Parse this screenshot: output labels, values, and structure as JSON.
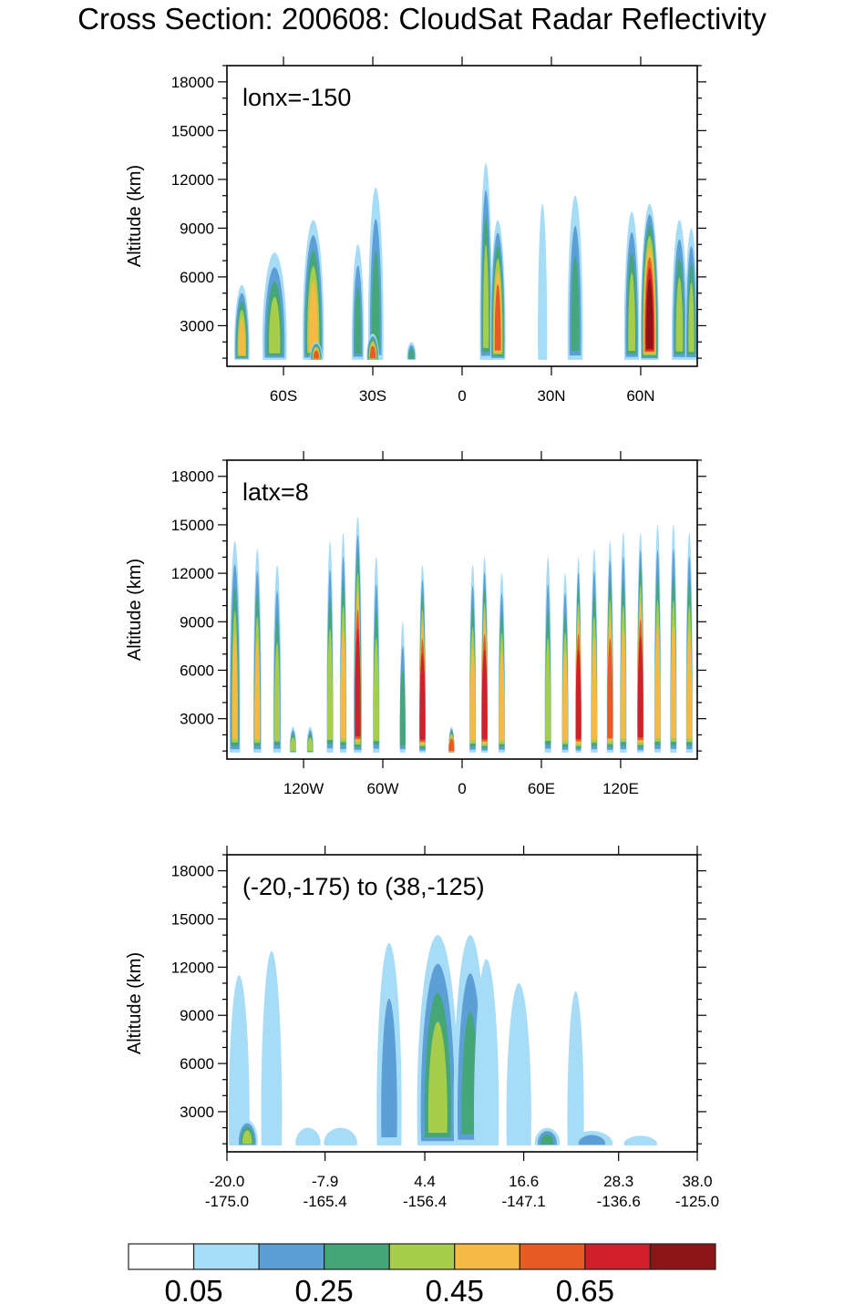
{
  "title": "Cross Section: 200608: CloudSat Radar Reflectivity",
  "colors": {
    "levels": [
      "#ffffff",
      "#a6dcf5",
      "#5b9fd6",
      "#45a677",
      "#a8cd4b",
      "#f6b944",
      "#ea5a26",
      "#d0202a",
      "#8c1416"
    ],
    "axis": "#000000"
  },
  "chart_data": [
    {
      "type": "heatmap",
      "panel_label": "lonx=-150",
      "ylabel": "Altitude (km)",
      "xlabel": "",
      "x_ticks": [
        {
          "value": -60,
          "label": "60S"
        },
        {
          "value": -30,
          "label": "30S"
        },
        {
          "value": 0,
          "label": "0"
        },
        {
          "value": 30,
          "label": "30N"
        },
        {
          "value": 60,
          "label": "60N"
        }
      ],
      "xlim": [
        -79,
        79
      ],
      "y_ticks": [
        3000,
        6000,
        9000,
        12000,
        15000,
        18000
      ],
      "ylim": [
        500,
        19000
      ],
      "grid": false,
      "features": [
        {
          "x": -74,
          "width": 5,
          "top": 5500,
          "peak_level": 5
        },
        {
          "x": -63,
          "width": 8,
          "top": 7500,
          "peak_level": 4
        },
        {
          "x": -50,
          "width": 7,
          "top": 9500,
          "peak_level": 5
        },
        {
          "x": -49,
          "width": 4,
          "top": 2000,
          "peak_level": 6
        },
        {
          "x": -35,
          "width": 4,
          "top": 8000,
          "peak_level": 3
        },
        {
          "x": -29,
          "width": 5,
          "top": 11500,
          "peak_level": 3
        },
        {
          "x": -30,
          "width": 4,
          "top": 2500,
          "peak_level": 6
        },
        {
          "x": -17,
          "width": 3,
          "top": 2000,
          "peak_level": 3
        },
        {
          "x": 8,
          "width": 4,
          "top": 13000,
          "peak_level": 4
        },
        {
          "x": 12,
          "width": 5,
          "top": 9500,
          "peak_level": 6
        },
        {
          "x": 27,
          "width": 3,
          "top": 10500,
          "peak_level": 1
        },
        {
          "x": 38,
          "width": 5,
          "top": 11000,
          "peak_level": 3
        },
        {
          "x": 57,
          "width": 5,
          "top": 10000,
          "peak_level": 4
        },
        {
          "x": 63,
          "width": 6,
          "top": 10500,
          "peak_level": 8
        },
        {
          "x": 73,
          "width": 5,
          "top": 9500,
          "peak_level": 4
        },
        {
          "x": 77,
          "width": 4,
          "top": 9000,
          "peak_level": 4
        }
      ]
    },
    {
      "type": "heatmap",
      "panel_label": "latx=8",
      "ylabel": "Altitude (km)",
      "xlabel": "",
      "x_ticks": [
        {
          "value": -120,
          "label": "120W"
        },
        {
          "value": -60,
          "label": "60W"
        },
        {
          "value": 0,
          "label": "0"
        },
        {
          "value": 60,
          "label": "60E"
        },
        {
          "value": 120,
          "label": "120E"
        }
      ],
      "xlim": [
        -178,
        178
      ],
      "y_ticks": [
        3000,
        6000,
        9000,
        12000,
        15000,
        18000
      ],
      "ylim": [
        500,
        19000
      ],
      "grid": false,
      "features": [
        {
          "x": -172,
          "width": 8,
          "top": 14000,
          "peak_level": 5
        },
        {
          "x": -155,
          "width": 6,
          "top": 13500,
          "peak_level": 5
        },
        {
          "x": -140,
          "width": 6,
          "top": 12500,
          "peak_level": 4
        },
        {
          "x": -128,
          "width": 5,
          "top": 2500,
          "peak_level": 4
        },
        {
          "x": -115,
          "width": 5,
          "top": 2500,
          "peak_level": 4
        },
        {
          "x": -100,
          "width": 5,
          "top": 14000,
          "peak_level": 4
        },
        {
          "x": -90,
          "width": 5,
          "top": 14500,
          "peak_level": 5
        },
        {
          "x": -79,
          "width": 6,
          "top": 15500,
          "peak_level": 7
        },
        {
          "x": -65,
          "width": 5,
          "top": 13000,
          "peak_level": 4
        },
        {
          "x": -45,
          "width": 4,
          "top": 9000,
          "peak_level": 3
        },
        {
          "x": -30,
          "width": 5,
          "top": 12500,
          "peak_level": 7
        },
        {
          "x": -8,
          "width": 4,
          "top": 2500,
          "peak_level": 6
        },
        {
          "x": 8,
          "width": 5,
          "top": 12500,
          "peak_level": 5
        },
        {
          "x": 17,
          "width": 5,
          "top": 13000,
          "peak_level": 7
        },
        {
          "x": 30,
          "width": 5,
          "top": 12000,
          "peak_level": 5
        },
        {
          "x": 65,
          "width": 5,
          "top": 13000,
          "peak_level": 4
        },
        {
          "x": 78,
          "width": 5,
          "top": 12000,
          "peak_level": 5
        },
        {
          "x": 88,
          "width": 4,
          "top": 13000,
          "peak_level": 7
        },
        {
          "x": 100,
          "width": 5,
          "top": 13500,
          "peak_level": 5
        },
        {
          "x": 112,
          "width": 5,
          "top": 14000,
          "peak_level": 6
        },
        {
          "x": 122,
          "width": 5,
          "top": 14500,
          "peak_level": 5
        },
        {
          "x": 135,
          "width": 5,
          "top": 14500,
          "peak_level": 7
        },
        {
          "x": 148,
          "width": 5,
          "top": 15000,
          "peak_level": 5
        },
        {
          "x": 160,
          "width": 5,
          "top": 15000,
          "peak_level": 5
        },
        {
          "x": 172,
          "width": 5,
          "top": 14500,
          "peak_level": 5
        }
      ]
    },
    {
      "type": "heatmap",
      "panel_label": "(-20,-175) to (38,-125)",
      "ylabel": "Altitude (km)",
      "xlabel": "",
      "x_ticks": [
        {
          "value": -20.0,
          "label": "-20.0",
          "label2": "-175.0"
        },
        {
          "value": -7.9,
          "label": "-7.9",
          "label2": "-165.4"
        },
        {
          "value": 4.4,
          "label": "4.4",
          "label2": "-156.4"
        },
        {
          "value": 16.6,
          "label": "16.6",
          "label2": "-147.1"
        },
        {
          "value": 28.3,
          "label": "28.3",
          "label2": "-136.6"
        },
        {
          "value": 38.0,
          "label": "38.0",
          "label2": "-125.0"
        }
      ],
      "xlim": [
        -20.0,
        38.0
      ],
      "y_ticks": [
        3000,
        6000,
        9000,
        12000,
        15000,
        18000
      ],
      "ylim": [
        500,
        19000
      ],
      "grid": false,
      "features": [
        {
          "x": -18.5,
          "width": 2.5,
          "top": 11500,
          "peak_level": 1
        },
        {
          "x": -17.5,
          "width": 2.5,
          "top": 2500,
          "peak_level": 4
        },
        {
          "x": -14.5,
          "width": 2.5,
          "top": 13000,
          "peak_level": 1
        },
        {
          "x": -10,
          "width": 3,
          "top": 2000,
          "peak_level": 1
        },
        {
          "x": -6,
          "width": 4,
          "top": 2000,
          "peak_level": 1
        },
        {
          "x": 0,
          "width": 3,
          "top": 13500,
          "peak_level": 2
        },
        {
          "x": 6,
          "width": 5,
          "top": 14000,
          "peak_level": 4
        },
        {
          "x": 10,
          "width": 4,
          "top": 14000,
          "peak_level": 3
        },
        {
          "x": 12,
          "width": 3,
          "top": 12500,
          "peak_level": 1
        },
        {
          "x": 16,
          "width": 3,
          "top": 11000,
          "peak_level": 1
        },
        {
          "x": 19.5,
          "width": 3,
          "top": 2000,
          "peak_level": 3
        },
        {
          "x": 23,
          "width": 2,
          "top": 10500,
          "peak_level": 1
        },
        {
          "x": 25,
          "width": 5,
          "top": 1800,
          "peak_level": 2
        },
        {
          "x": 31,
          "width": 4,
          "top": 1500,
          "peak_level": 1
        }
      ]
    }
  ],
  "colorbar": {
    "tick_labels": [
      "0.05",
      "0.25",
      "0.45",
      "0.65"
    ]
  }
}
